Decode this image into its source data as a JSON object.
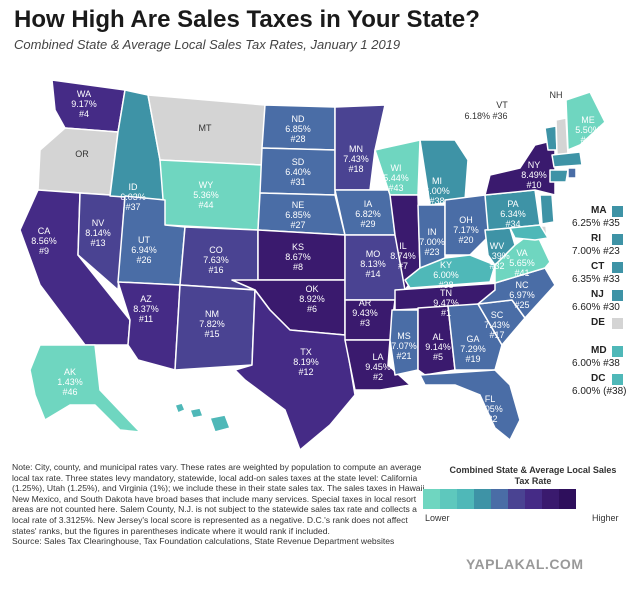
{
  "title": "How High Are Sales Taxes in Your State?",
  "subtitle": "Combined State & Average Local Sales Tax Rates, January 1 2019",
  "colors": {
    "c1": "#6fd6c0",
    "c2": "#4fb8b8",
    "c3": "#3e93a6",
    "c4": "#4a6da6",
    "c5": "#4a4392",
    "c6": "#452b86",
    "c7": "#3a1a6e",
    "none": "#d4d4d4"
  },
  "states": {
    "WA": {
      "abbr": "WA",
      "rate": "9.17%",
      "rank": "#4"
    },
    "OR": {
      "abbr": "OR"
    },
    "CA": {
      "abbr": "CA",
      "rate": "8.56%",
      "rank": "#9"
    },
    "NV": {
      "abbr": "NV",
      "rate": "8.14%",
      "rank": "#13"
    },
    "ID": {
      "abbr": "ID",
      "rate": "6.03%",
      "rank": "#37"
    },
    "MT": {
      "abbr": "MT"
    },
    "WY": {
      "abbr": "WY",
      "rate": "5.36%",
      "rank": "#44"
    },
    "UT": {
      "abbr": "UT",
      "rate": "6.94%",
      "rank": "#26"
    },
    "AZ": {
      "abbr": "AZ",
      "rate": "8.37%",
      "rank": "#11"
    },
    "CO": {
      "abbr": "CO",
      "rate": "7.63%",
      "rank": "#16"
    },
    "NM": {
      "abbr": "NM",
      "rate": "7.82%",
      "rank": "#15"
    },
    "ND": {
      "abbr": "ND",
      "rate": "6.85%",
      "rank": "#28"
    },
    "SD": {
      "abbr": "SD",
      "rate": "6.40%",
      "rank": "#31"
    },
    "NE": {
      "abbr": "NE",
      "rate": "6.85%",
      "rank": "#27"
    },
    "KS": {
      "abbr": "KS",
      "rate": "8.67%",
      "rank": "#8"
    },
    "OK": {
      "abbr": "OK",
      "rate": "8.92%",
      "rank": "#6"
    },
    "TX": {
      "abbr": "TX",
      "rate": "8.19%",
      "rank": "#12"
    },
    "MN": {
      "abbr": "MN",
      "rate": "7.43%",
      "rank": "#18"
    },
    "IA": {
      "abbr": "IA",
      "rate": "6.82%",
      "rank": "#29"
    },
    "MO": {
      "abbr": "MO",
      "rate": "8.13%",
      "rank": "#14"
    },
    "AR": {
      "abbr": "AR",
      "rate": "9.43%",
      "rank": "#3"
    },
    "LA": {
      "abbr": "LA",
      "rate": "9.45%",
      "rank": "#2"
    },
    "WI": {
      "abbr": "WI",
      "rate": "5.44%",
      "rank": "#43"
    },
    "IL": {
      "abbr": "IL",
      "rate": "8.74%",
      "rank": "#7"
    },
    "MI": {
      "abbr": "MI",
      "rate": "6.00%",
      "rank": "#38"
    },
    "IN": {
      "abbr": "IN",
      "rate": "7.00%",
      "rank": "#23"
    },
    "OH": {
      "abbr": "OH",
      "rate": "7.17%",
      "rank": "#20"
    },
    "KY": {
      "abbr": "KY",
      "rate": "6.00%",
      "rank": "#38"
    },
    "TN": {
      "abbr": "TN",
      "rate": "9.47%",
      "rank": "#1"
    },
    "MS": {
      "abbr": "MS",
      "rate": "7.07%",
      "rank": "#21"
    },
    "AL": {
      "abbr": "AL",
      "rate": "9.14%",
      "rank": "#5"
    },
    "GA": {
      "abbr": "GA",
      "rate": "7.29%",
      "rank": "#19"
    },
    "FL": {
      "abbr": "FL",
      "rate": "7.05%",
      "rank": "#22"
    },
    "SC": {
      "abbr": "SC",
      "rate": "7.43%",
      "rank": "#17"
    },
    "NC": {
      "abbr": "NC",
      "rate": "6.97%",
      "rank": "#25"
    },
    "VA": {
      "abbr": "VA",
      "rate": "5.65%",
      "rank": "#41"
    },
    "WV": {
      "abbr": "WV",
      "rate": "6.39%",
      "rank": "#32"
    },
    "PA": {
      "abbr": "PA",
      "rate": "6.34%",
      "rank": "#34"
    },
    "NY": {
      "abbr": "NY",
      "rate": "8.49%",
      "rank": "#10"
    },
    "VT": {
      "abbr": "VT",
      "rate": "6.18%",
      "rank": "#36"
    },
    "NH": {
      "abbr": "NH"
    },
    "ME": {
      "abbr": "ME",
      "rate": "5.50%",
      "rank": "#42"
    },
    "AK": {
      "abbr": "AK",
      "rate": "1.43%",
      "rank": "#46"
    },
    "HI": {
      "abbr": "HI",
      "rate": "4.41%",
      "rank": "#45"
    }
  },
  "sidebar": [
    {
      "abbr": "MA",
      "value": "6.25% #35",
      "color": "#3e93a6"
    },
    {
      "abbr": "RI",
      "value": "7.00% #23",
      "color": "#3e93a6"
    },
    {
      "abbr": "CT",
      "value": "6.35% #33",
      "color": "#3e93a6"
    },
    {
      "abbr": "NJ",
      "value": "6.60% #30",
      "color": "#3e93a6"
    },
    {
      "abbr": "DE",
      "value": "",
      "color": "#d4d4d4"
    },
    {
      "abbr": "MD",
      "value": "6.00% #38",
      "color": "#4fb8b8"
    },
    {
      "abbr": "DC",
      "value": "6.00% (#38)",
      "color": "#4fb8b8"
    }
  ],
  "note": "Note: City, county, and municipal rates vary. These rates are weighted by population to compute an average local tax rate. Three states levy mandatory, statewide, local add-on sales taxes at the state level: California (1.25%), Utah (1.25%), and Virginia (1%); we include these in their state sales tax. The sales taxes in Hawaii, New Mexico, and South Dakota have broad bases that include many services. Special taxes in local resort areas are not counted here. Salem County, N.J. is not subject to the statewide sales tax rate and collects a local rate of 3.3125%. New Jersey's local score is represented as a negative. D.C.'s rank does not affect states' ranks, but the figures in parentheses indicate where it would rank if included.",
  "source": "Source: Sales Tax Clearinghouse, Tax Foundation calculations, State Revenue Department websites",
  "legend": {
    "title": "Combined State & Average Local Sales Tax Rate",
    "low": "Lower",
    "high": "Higher",
    "scale": [
      "#6fd6c0",
      "#5ec8bd",
      "#4fb8b8",
      "#3e93a6",
      "#4a6da6",
      "#4a4392",
      "#452b86",
      "#3a1a6e",
      "#2e0f5c"
    ]
  },
  "watermark": "YAPLAKAL.COM"
}
